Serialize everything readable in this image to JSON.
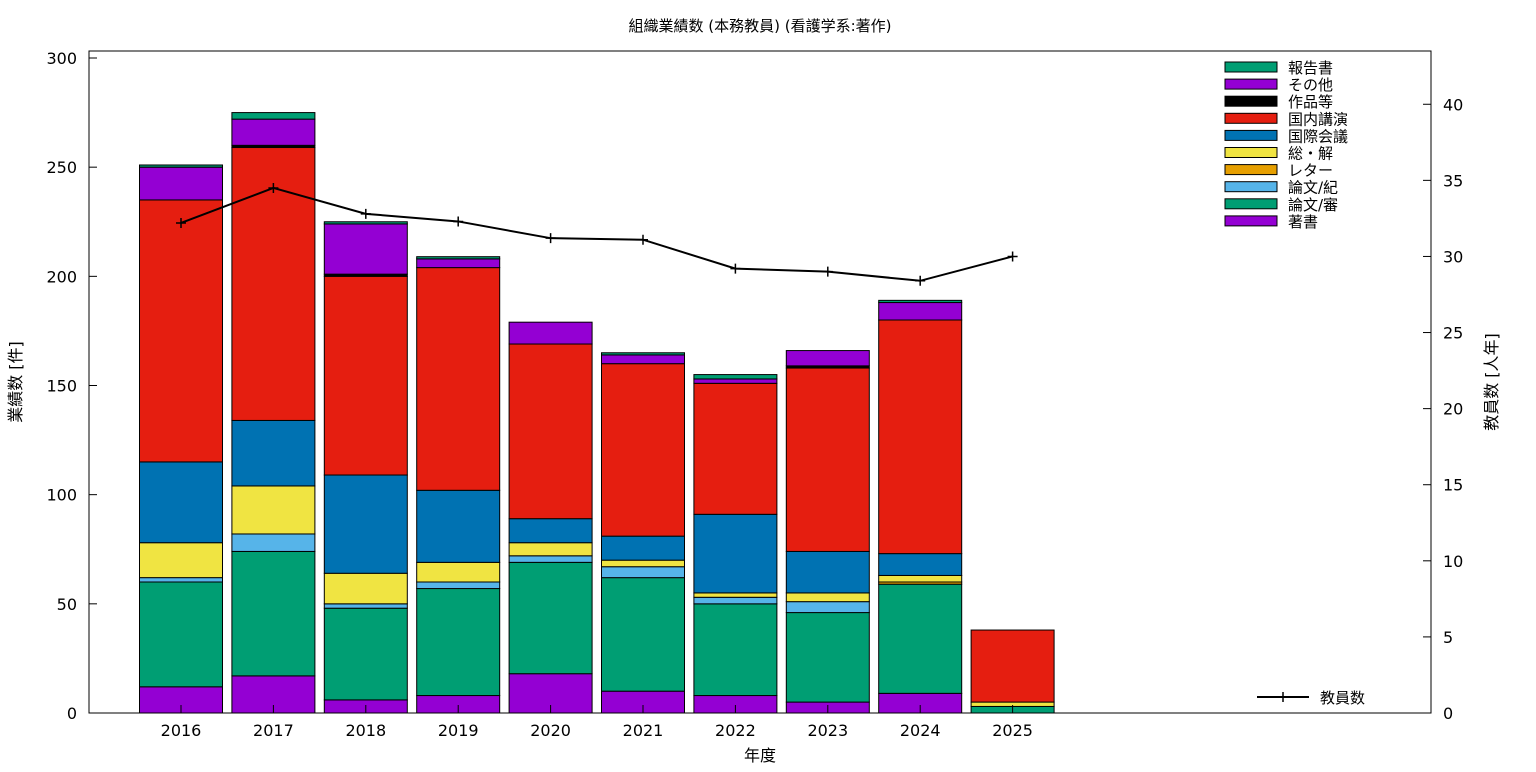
{
  "chart_data": {
    "type": "bar",
    "stacked": true,
    "title": "組織業績数 (本務教員) (看護学系:著作)",
    "xlabel": "年度",
    "ylabel": "業績数 [件]",
    "y2label": "教員数 [人年]",
    "ylim": [
      0,
      300
    ],
    "y2lim": [
      0,
      43.5
    ],
    "yticks": [
      "0",
      "50",
      "100",
      "150",
      "200",
      "250",
      "300"
    ],
    "y2ticks": [
      "0",
      "5",
      "10",
      "15",
      "20",
      "25",
      "30",
      "35",
      "40"
    ],
    "categories": [
      "2016",
      "2017",
      "2018",
      "2019",
      "2020",
      "2021",
      "2022",
      "2023",
      "2024",
      "2025"
    ],
    "grid": false,
    "legend_position": "top-right",
    "series": [
      {
        "name": "著書",
        "color": "#9400d3",
        "values": [
          12,
          17,
          6,
          8,
          18,
          10,
          8,
          5,
          9,
          0
        ]
      },
      {
        "name": "論文/審",
        "color": "#009e73",
        "values": [
          48,
          57,
          42,
          49,
          51,
          52,
          42,
          41,
          50,
          3
        ]
      },
      {
        "name": "論文/紀",
        "color": "#56b4e9",
        "values": [
          2,
          8,
          2,
          3,
          3,
          5,
          3,
          5,
          0,
          0
        ]
      },
      {
        "name": "レター",
        "color": "#e69f00",
        "values": [
          0,
          0,
          0,
          0,
          0,
          0,
          0,
          0,
          1,
          0
        ]
      },
      {
        "name": "総・解",
        "color": "#f0e442",
        "values": [
          16,
          22,
          14,
          9,
          6,
          3,
          2,
          4,
          3,
          2
        ]
      },
      {
        "name": "国際会議",
        "color": "#0072b2",
        "values": [
          37,
          30,
          45,
          33,
          11,
          11,
          36,
          19,
          10,
          0
        ]
      },
      {
        "name": "国内講演",
        "color": "#e51e10",
        "values": [
          120,
          125,
          91,
          102,
          80,
          79,
          60,
          84,
          107,
          33
        ]
      },
      {
        "name": "作品等",
        "color": "#000000",
        "values": [
          0,
          1,
          1,
          0,
          0,
          0,
          0,
          1,
          0,
          0
        ]
      },
      {
        "name": "その他",
        "color": "#9400d3",
        "values": [
          15,
          12,
          23,
          4,
          10,
          4,
          2,
          7,
          8,
          0
        ]
      },
      {
        "name": "報告書",
        "color": "#009e73",
        "values": [
          1,
          3,
          1,
          1,
          0,
          1,
          2,
          0,
          1,
          0
        ]
      }
    ],
    "line_series": {
      "name": "教員数",
      "axis": "y2",
      "color": "#000000",
      "values": [
        32.2,
        34.5,
        32.8,
        32.3,
        31.2,
        31.1,
        29.2,
        29.0,
        28.4,
        30.0
      ]
    }
  }
}
